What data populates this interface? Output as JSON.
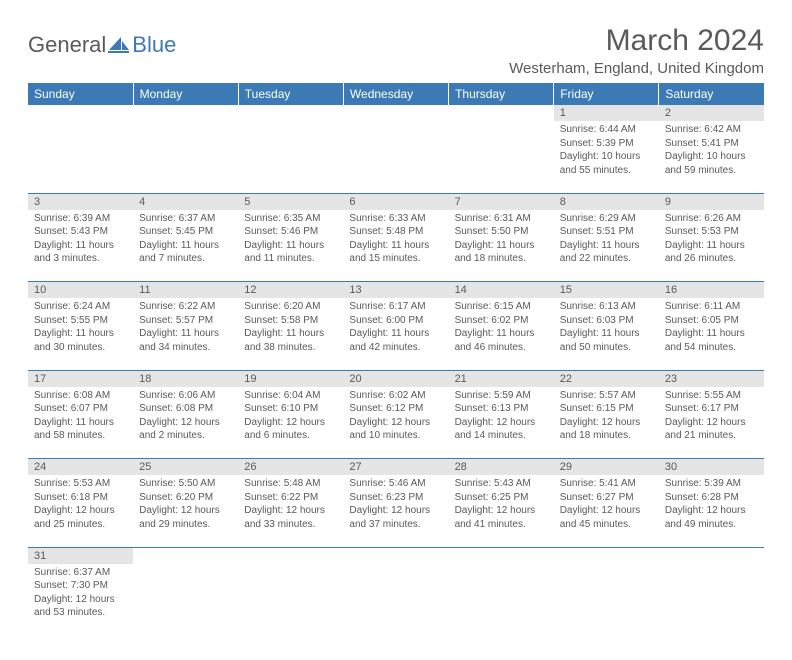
{
  "logo": {
    "word1": "General",
    "word2": "Blue"
  },
  "title": "March 2024",
  "location": "Westerham, England, United Kingdom",
  "colors": {
    "header_bg": "#3c7ab5",
    "header_text": "#ffffff",
    "daynum_bg": "#e5e5e5",
    "text": "#5a5a5a",
    "row_border": "#3c7ab5"
  },
  "days_of_week": [
    "Sunday",
    "Monday",
    "Tuesday",
    "Wednesday",
    "Thursday",
    "Friday",
    "Saturday"
  ],
  "weeks": [
    {
      "nums": [
        "",
        "",
        "",
        "",
        "",
        "1",
        "2"
      ],
      "cells": [
        null,
        null,
        null,
        null,
        null,
        {
          "sunrise": "Sunrise: 6:44 AM",
          "sunset": "Sunset: 5:39 PM",
          "daylight": "Daylight: 10 hours and 55 minutes."
        },
        {
          "sunrise": "Sunrise: 6:42 AM",
          "sunset": "Sunset: 5:41 PM",
          "daylight": "Daylight: 10 hours and 59 minutes."
        }
      ]
    },
    {
      "nums": [
        "3",
        "4",
        "5",
        "6",
        "7",
        "8",
        "9"
      ],
      "cells": [
        {
          "sunrise": "Sunrise: 6:39 AM",
          "sunset": "Sunset: 5:43 PM",
          "daylight": "Daylight: 11 hours and 3 minutes."
        },
        {
          "sunrise": "Sunrise: 6:37 AM",
          "sunset": "Sunset: 5:45 PM",
          "daylight": "Daylight: 11 hours and 7 minutes."
        },
        {
          "sunrise": "Sunrise: 6:35 AM",
          "sunset": "Sunset: 5:46 PM",
          "daylight": "Daylight: 11 hours and 11 minutes."
        },
        {
          "sunrise": "Sunrise: 6:33 AM",
          "sunset": "Sunset: 5:48 PM",
          "daylight": "Daylight: 11 hours and 15 minutes."
        },
        {
          "sunrise": "Sunrise: 6:31 AM",
          "sunset": "Sunset: 5:50 PM",
          "daylight": "Daylight: 11 hours and 18 minutes."
        },
        {
          "sunrise": "Sunrise: 6:29 AM",
          "sunset": "Sunset: 5:51 PM",
          "daylight": "Daylight: 11 hours and 22 minutes."
        },
        {
          "sunrise": "Sunrise: 6:26 AM",
          "sunset": "Sunset: 5:53 PM",
          "daylight": "Daylight: 11 hours and 26 minutes."
        }
      ]
    },
    {
      "nums": [
        "10",
        "11",
        "12",
        "13",
        "14",
        "15",
        "16"
      ],
      "cells": [
        {
          "sunrise": "Sunrise: 6:24 AM",
          "sunset": "Sunset: 5:55 PM",
          "daylight": "Daylight: 11 hours and 30 minutes."
        },
        {
          "sunrise": "Sunrise: 6:22 AM",
          "sunset": "Sunset: 5:57 PM",
          "daylight": "Daylight: 11 hours and 34 minutes."
        },
        {
          "sunrise": "Sunrise: 6:20 AM",
          "sunset": "Sunset: 5:58 PM",
          "daylight": "Daylight: 11 hours and 38 minutes."
        },
        {
          "sunrise": "Sunrise: 6:17 AM",
          "sunset": "Sunset: 6:00 PM",
          "daylight": "Daylight: 11 hours and 42 minutes."
        },
        {
          "sunrise": "Sunrise: 6:15 AM",
          "sunset": "Sunset: 6:02 PM",
          "daylight": "Daylight: 11 hours and 46 minutes."
        },
        {
          "sunrise": "Sunrise: 6:13 AM",
          "sunset": "Sunset: 6:03 PM",
          "daylight": "Daylight: 11 hours and 50 minutes."
        },
        {
          "sunrise": "Sunrise: 6:11 AM",
          "sunset": "Sunset: 6:05 PM",
          "daylight": "Daylight: 11 hours and 54 minutes."
        }
      ]
    },
    {
      "nums": [
        "17",
        "18",
        "19",
        "20",
        "21",
        "22",
        "23"
      ],
      "cells": [
        {
          "sunrise": "Sunrise: 6:08 AM",
          "sunset": "Sunset: 6:07 PM",
          "daylight": "Daylight: 11 hours and 58 minutes."
        },
        {
          "sunrise": "Sunrise: 6:06 AM",
          "sunset": "Sunset: 6:08 PM",
          "daylight": "Daylight: 12 hours and 2 minutes."
        },
        {
          "sunrise": "Sunrise: 6:04 AM",
          "sunset": "Sunset: 6:10 PM",
          "daylight": "Daylight: 12 hours and 6 minutes."
        },
        {
          "sunrise": "Sunrise: 6:02 AM",
          "sunset": "Sunset: 6:12 PM",
          "daylight": "Daylight: 12 hours and 10 minutes."
        },
        {
          "sunrise": "Sunrise: 5:59 AM",
          "sunset": "Sunset: 6:13 PM",
          "daylight": "Daylight: 12 hours and 14 minutes."
        },
        {
          "sunrise": "Sunrise: 5:57 AM",
          "sunset": "Sunset: 6:15 PM",
          "daylight": "Daylight: 12 hours and 18 minutes."
        },
        {
          "sunrise": "Sunrise: 5:55 AM",
          "sunset": "Sunset: 6:17 PM",
          "daylight": "Daylight: 12 hours and 21 minutes."
        }
      ]
    },
    {
      "nums": [
        "24",
        "25",
        "26",
        "27",
        "28",
        "29",
        "30"
      ],
      "cells": [
        {
          "sunrise": "Sunrise: 5:53 AM",
          "sunset": "Sunset: 6:18 PM",
          "daylight": "Daylight: 12 hours and 25 minutes."
        },
        {
          "sunrise": "Sunrise: 5:50 AM",
          "sunset": "Sunset: 6:20 PM",
          "daylight": "Daylight: 12 hours and 29 minutes."
        },
        {
          "sunrise": "Sunrise: 5:48 AM",
          "sunset": "Sunset: 6:22 PM",
          "daylight": "Daylight: 12 hours and 33 minutes."
        },
        {
          "sunrise": "Sunrise: 5:46 AM",
          "sunset": "Sunset: 6:23 PM",
          "daylight": "Daylight: 12 hours and 37 minutes."
        },
        {
          "sunrise": "Sunrise: 5:43 AM",
          "sunset": "Sunset: 6:25 PM",
          "daylight": "Daylight: 12 hours and 41 minutes."
        },
        {
          "sunrise": "Sunrise: 5:41 AM",
          "sunset": "Sunset: 6:27 PM",
          "daylight": "Daylight: 12 hours and 45 minutes."
        },
        {
          "sunrise": "Sunrise: 5:39 AM",
          "sunset": "Sunset: 6:28 PM",
          "daylight": "Daylight: 12 hours and 49 minutes."
        }
      ]
    },
    {
      "nums": [
        "31",
        "",
        "",
        "",
        "",
        "",
        ""
      ],
      "cells": [
        {
          "sunrise": "Sunrise: 6:37 AM",
          "sunset": "Sunset: 7:30 PM",
          "daylight": "Daylight: 12 hours and 53 minutes."
        },
        null,
        null,
        null,
        null,
        null,
        null
      ]
    }
  ]
}
